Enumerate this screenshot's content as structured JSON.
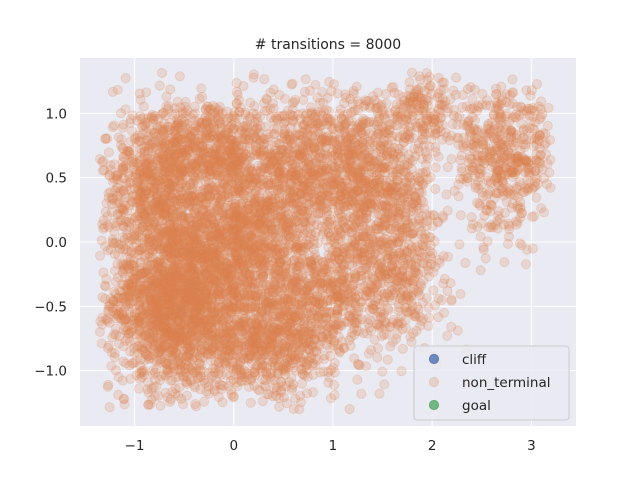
{
  "chart_data": {
    "type": "scatter",
    "title": "# transitions = 8000",
    "xlabel": "",
    "ylabel": "",
    "xlim": [
      -1.55,
      3.45
    ],
    "ylim": [
      -1.43,
      1.43
    ],
    "xticks": [
      -1,
      0,
      1,
      2,
      3
    ],
    "yticks": [
      -1.0,
      -0.5,
      0.0,
      0.5,
      1.0
    ],
    "xtick_labels": [
      "−1",
      "0",
      "1",
      "2",
      "3"
    ],
    "ytick_labels": [
      "−1.0",
      "−0.5",
      "0.0",
      "0.5",
      "1.0"
    ],
    "grid": true,
    "background": "#eaeaf2",
    "legend": {
      "placement": "lower-right",
      "entries": [
        {
          "label": "cliff",
          "color": "#4c72b0"
        },
        {
          "label": "non_terminal",
          "color": "#dd8452"
        },
        {
          "label": "goal",
          "color": "#55a868"
        }
      ]
    },
    "series": [
      {
        "name": "cliff",
        "color": "#4c72b0",
        "points": []
      },
      {
        "name": "non_terminal",
        "color": "#dd8452",
        "alpha": 0.2,
        "total_points": 8000,
        "clusters": [
          {
            "center": [
              -0.6,
              -0.45
            ],
            "spread": [
              0.32,
              0.35
            ],
            "weight": 0.22
          },
          {
            "center": [
              -0.75,
              0.45
            ],
            "spread": [
              0.3,
              0.3
            ],
            "weight": 0.1
          },
          {
            "center": [
              0.1,
              -0.05
            ],
            "spread": [
              0.35,
              0.35
            ],
            "weight": 0.16
          },
          {
            "center": [
              0.35,
              -0.8
            ],
            "spread": [
              0.35,
              0.2
            ],
            "weight": 0.08
          },
          {
            "center": [
              -0.2,
              0.75
            ],
            "spread": [
              0.3,
              0.2
            ],
            "weight": 0.06
          },
          {
            "center": [
              0.6,
              0.55
            ],
            "spread": [
              0.3,
              0.3
            ],
            "weight": 0.07
          },
          {
            "center": [
              1.3,
              0.6
            ],
            "spread": [
              0.35,
              0.3
            ],
            "weight": 0.09
          },
          {
            "center": [
              1.55,
              -0.1
            ],
            "spread": [
              0.3,
              0.35
            ],
            "weight": 0.09
          },
          {
            "center": [
              0.9,
              -0.4
            ],
            "spread": [
              0.3,
              0.25
            ],
            "weight": 0.05
          },
          {
            "center": [
              2.0,
              1.0
            ],
            "spread": [
              0.25,
              0.15
            ],
            "weight": 0.02
          },
          {
            "center": [
              2.75,
              0.65
            ],
            "spread": [
              0.25,
              0.28
            ],
            "weight": 0.06
          }
        ],
        "x_range": [
          -1.35,
          3.2
        ],
        "y_range": [
          -1.3,
          1.32
        ]
      },
      {
        "name": "goal",
        "color": "#55a868",
        "points": []
      }
    ]
  }
}
